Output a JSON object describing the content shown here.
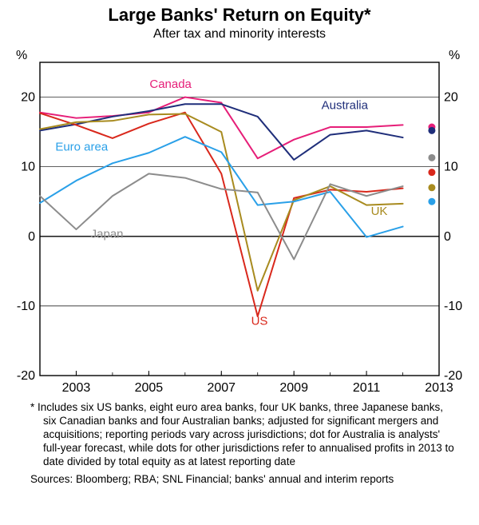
{
  "title": "Large Banks' Return on Equity*",
  "subtitle": "After tax and minority interests",
  "y_unit": "%",
  "ylim": [
    -20,
    25
  ],
  "yticks": [
    -20,
    -10,
    0,
    10,
    20
  ],
  "xlim": [
    2002,
    2013
  ],
  "xticks": [
    2003,
    2005,
    2007,
    2009,
    2011,
    2013
  ],
  "background_color": "#ffffff",
  "axis_color": "#000000",
  "grid_color": "#000000",
  "grid_width": 0.7,
  "zero_line_width": 1.4,
  "line_width": 2.0,
  "tick_fontsize": 16,
  "label_fontsize": 16,
  "series": {
    "canada": {
      "label": "Canada",
      "color": "#e61e78",
      "label_x": 2005.6,
      "label_y": 21.3,
      "x": [
        2002,
        2003,
        2004,
        2005,
        2006,
        2007,
        2008,
        2009,
        2010,
        2011,
        2012
      ],
      "y": [
        17.8,
        17.0,
        17.3,
        17.8,
        20.0,
        19.2,
        11.2,
        13.9,
        15.7,
        15.7,
        16.0
      ],
      "dot_2013": 15.7
    },
    "australia": {
      "label": "Australia",
      "color": "#1f2e7a",
      "label_x": 2010.4,
      "label_y": 18.3,
      "x": [
        2002,
        2003,
        2004,
        2005,
        2006,
        2007,
        2008,
        2009,
        2010,
        2011,
        2012
      ],
      "y": [
        15.2,
        16.1,
        17.2,
        18.0,
        19.0,
        19.0,
        17.2,
        11.0,
        14.6,
        15.2,
        14.2
      ],
      "dot_2013": 15.2
    },
    "us": {
      "label": "US",
      "color": "#d9281c",
      "label_x": 2008.05,
      "label_y": -12.7,
      "x": [
        2002,
        2003,
        2004,
        2005,
        2006,
        2007,
        2008,
        2009,
        2010,
        2011,
        2012
      ],
      "y": [
        17.7,
        16.0,
        14.1,
        16.2,
        17.8,
        9.0,
        -11.5,
        5.5,
        6.7,
        6.4,
        6.9
      ],
      "dot_2013": 9.2
    },
    "uk": {
      "label": "UK",
      "color": "#a88b1f",
      "label_x": 2011.35,
      "label_y": 3.1,
      "x": [
        2002,
        2003,
        2004,
        2005,
        2006,
        2007,
        2008,
        2009,
        2010,
        2011,
        2012
      ],
      "y": [
        15.4,
        16.4,
        16.6,
        17.5,
        17.6,
        15.0,
        -7.8,
        5.2,
        7.2,
        4.5,
        4.7
      ],
      "dot_2013": 7.0
    },
    "euro_area": {
      "label": "Euro area",
      "color": "#2aa0e8",
      "label_x": 2003.15,
      "label_y": 12.3,
      "x": [
        2002,
        2003,
        2004,
        2005,
        2006,
        2007,
        2008,
        2009,
        2010,
        2011,
        2012
      ],
      "y": [
        4.8,
        8.0,
        10.5,
        12.0,
        14.3,
        12.1,
        4.5,
        5.0,
        6.4,
        -0.1,
        1.4
      ],
      "dot_2013": 5.0
    },
    "japan": {
      "label": "Japan",
      "color": "#8c8c8c",
      "label_x": 2003.85,
      "label_y": -0.2,
      "x": [
        2002,
        2003,
        2004,
        2005,
        2006,
        2007,
        2008,
        2009,
        2010,
        2011,
        2012
      ],
      "y": [
        5.8,
        1.0,
        5.8,
        9.0,
        8.4,
        6.8,
        6.3,
        -3.3,
        7.5,
        5.8,
        7.2
      ],
      "dot_2013": 11.3
    }
  },
  "dot_radius": 4.5,
  "footnote": "*   Includes six US banks, eight euro area banks, four UK banks, three Japanese banks, six Canadian banks and four Australian banks; adjusted for significant mergers and acquisitions; reporting periods vary across jurisdictions; dot for Australia is analysts' full-year forecast, while dots for other jurisdictions refer to annualised profits in 2013 to date divided by total equity as at latest reporting date",
  "sources": "Sources: Bloomberg; RBA; SNL Financial; banks' annual and interim reports"
}
